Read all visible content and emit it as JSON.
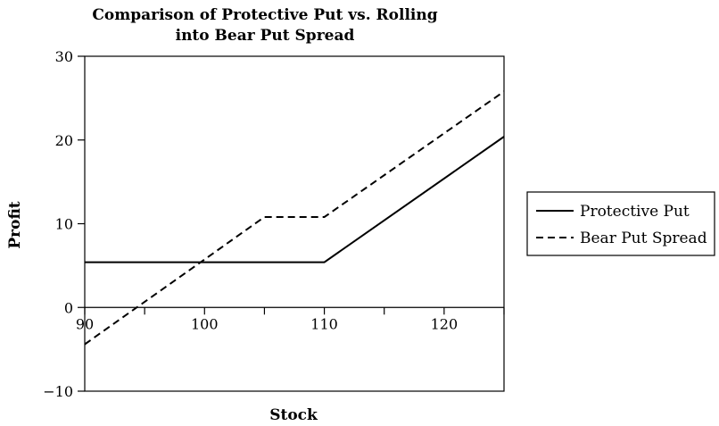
{
  "chart_data": {
    "type": "line",
    "title_line1": "Comparison of Protective Put vs. Rolling",
    "title_line2": "into Bear Put Spread",
    "xlabel": "Stock",
    "ylabel": "Profit",
    "xlim": [
      90,
      125
    ],
    "ylim": [
      -10,
      30
    ],
    "x_ticks": [
      90,
      100,
      110,
      120
    ],
    "x_minor_ticks": [
      95,
      105,
      115,
      125
    ],
    "y_ticks": [
      -10,
      0,
      10,
      20,
      30
    ],
    "y_tick_labels": [
      "−10",
      "0",
      "10",
      "20",
      "30"
    ],
    "grid": false,
    "legend_position": "right",
    "series": [
      {
        "name": "Protective Put",
        "style": "solid",
        "color": "#000000",
        "points": [
          [
            90,
            5.4
          ],
          [
            110,
            5.4
          ],
          [
            125,
            20.4
          ]
        ]
      },
      {
        "name": "Bear Put Spread",
        "style": "dashed",
        "color": "#000000",
        "points": [
          [
            90,
            -4.4
          ],
          [
            105,
            10.8
          ],
          [
            110,
            10.8
          ],
          [
            125,
            25.8
          ]
        ]
      }
    ]
  }
}
